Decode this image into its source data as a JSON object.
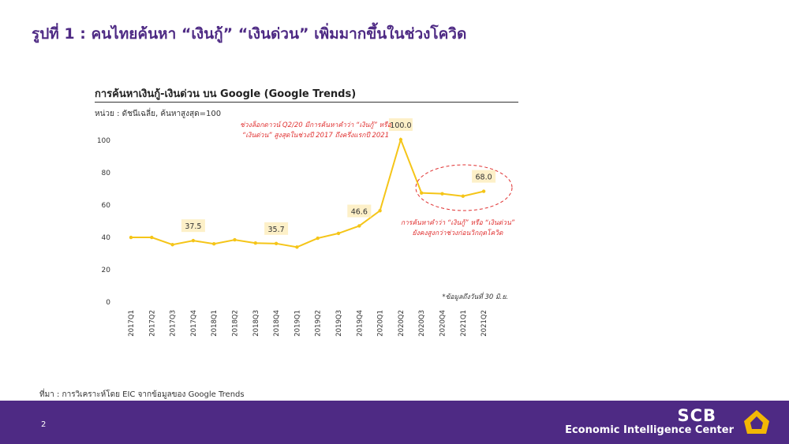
{
  "slide": {
    "title": "รูปที่ 1 : คนไทยค้นหา “เงินกู้” “เงินด่วน” เพิ่มมากขึ้นในช่วงโควิด",
    "unit_label": "หน่วย : ดัชนีเฉลี่ย, ค้นหาสูงสุด=100",
    "source": "ที่มา : การวิเคราะห์โดย EIC จากข้อมูลของ Google Trends",
    "page_number": "2"
  },
  "footer": {
    "brand": "SCB",
    "subtitle": "Economic Intelligence Center",
    "accent_color": "#4e2a84",
    "logo_color": "#f2b705"
  },
  "chart_data": {
    "type": "line",
    "title": "การค้นหาเงินกู้-เงินด่วน บน Google (Google Trends)",
    "categories": [
      "2017Q1",
      "2017Q2",
      "2017Q3",
      "2017Q4",
      "2018Q1",
      "2018Q2",
      "2018Q3",
      "2018Q4",
      "2019Q1",
      "2019Q2",
      "2019Q3",
      "2019Q4",
      "2020Q1",
      "2020Q2",
      "2020Q3",
      "2020Q4",
      "2021Q1",
      "2021Q2"
    ],
    "series": [
      {
        "values": [
          39.5,
          39.5,
          35,
          37.5,
          35.5,
          38,
          36,
          35.7,
          33.5,
          39,
          42,
          46.6,
          56,
          100.0,
          67,
          66.5,
          65,
          68.0
        ],
        "color": "#f5c518"
      }
    ],
    "data_labels": [
      {
        "index": 3,
        "text": "37.5"
      },
      {
        "index": 7,
        "text": "35.7"
      },
      {
        "index": 11,
        "text": "46.6"
      },
      {
        "index": 13,
        "text": "100.0"
      },
      {
        "index": 17,
        "text": "68.0"
      }
    ],
    "yticks": [
      0,
      20,
      40,
      60,
      80,
      100
    ],
    "ylim": [
      0,
      105
    ],
    "grid": false,
    "annotations": [
      {
        "lines": [
          "ช่วงล็อกดาวน์ Q2/20 มีการค้นหาคำว่า “เงินกู้” หรือ",
          "“เงินด่วน” สูงสุดในช่วงปี 2017 ถึงครึ่งแรกปี 2021"
        ],
        "color": "#e03030"
      },
      {
        "lines": [
          "การค้นหาคำว่า “เงินกู้” หรือ “เงินด่วน”",
          "ยังคงสูงกว่าช่วงก่อนวิกฤตโควิด"
        ],
        "color": "#e03030"
      },
      {
        "lines": [
          "*ข้อมูลถึงวันที่ 30 มิ.ย."
        ],
        "color": "#333333"
      }
    ],
    "label_bg": "#fdf0c8"
  }
}
